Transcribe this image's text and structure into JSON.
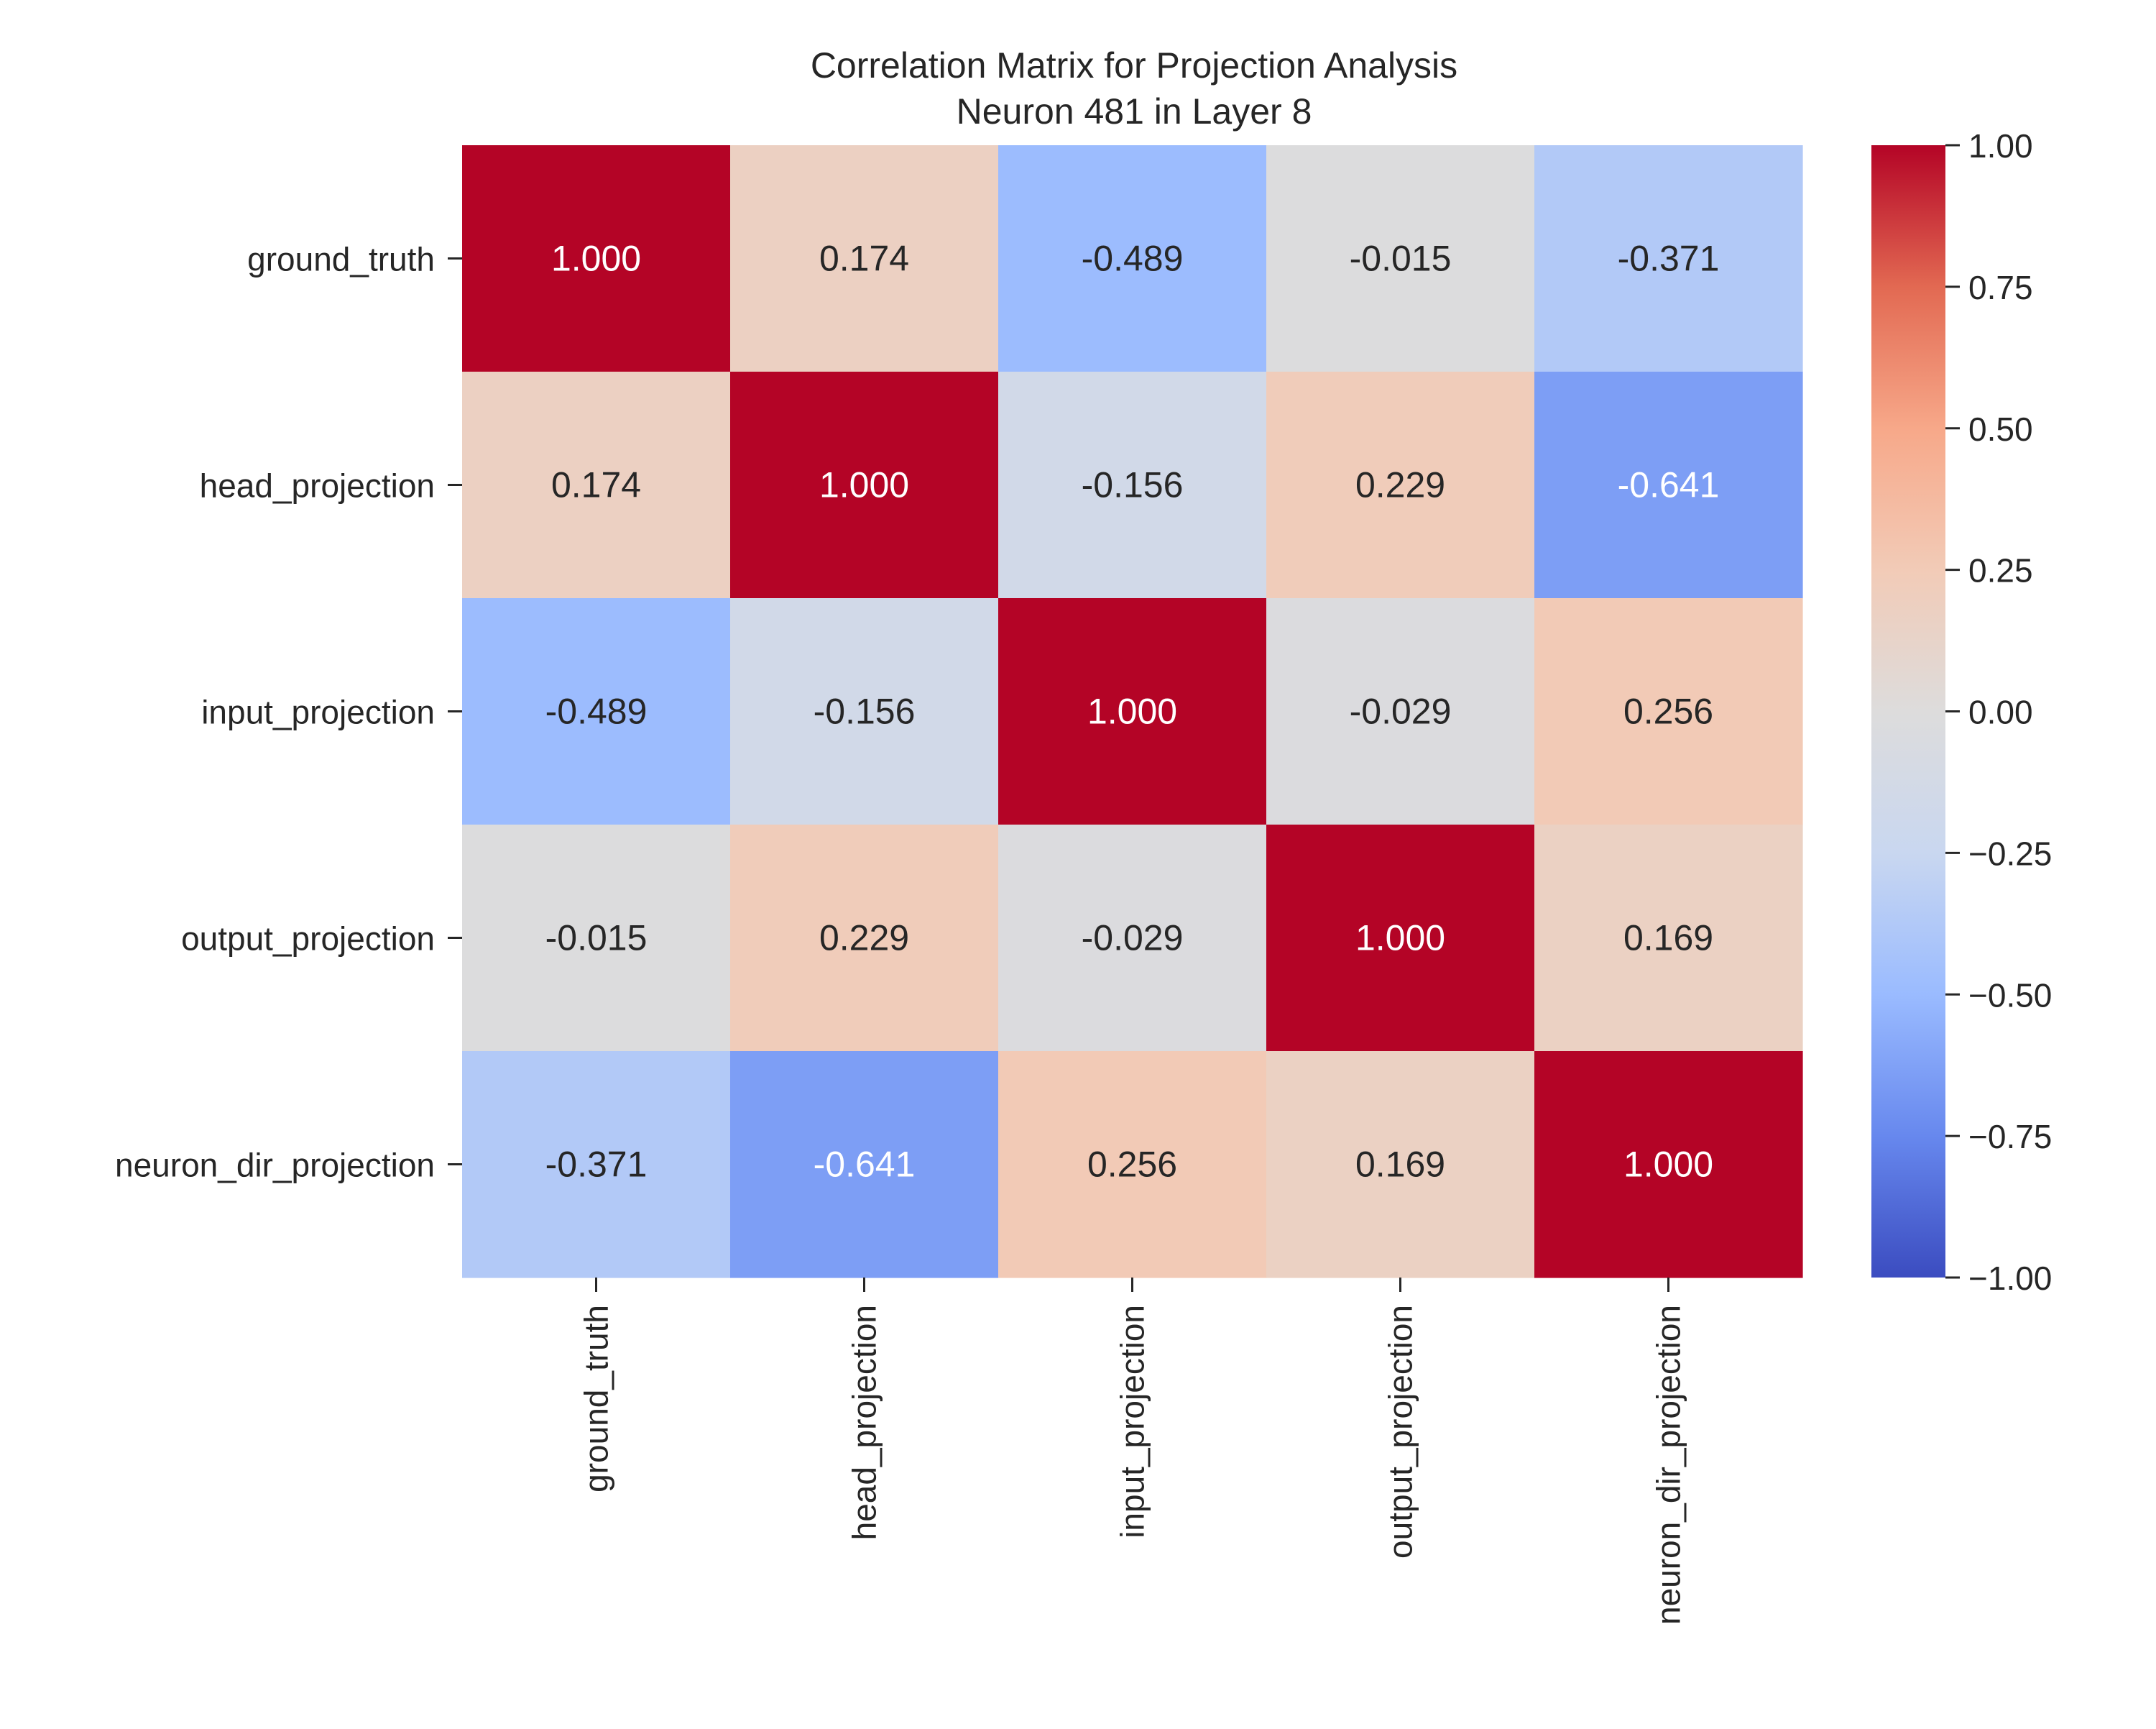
{
  "chart_data": {
    "type": "heatmap",
    "title": "Correlation Matrix for Projection Analysis",
    "subtitle": "Neuron 481 in Layer 8",
    "row_labels": [
      "ground_truth",
      "head_projection",
      "input_projection",
      "output_projection",
      "neuron_dir_projection"
    ],
    "col_labels": [
      "ground_truth",
      "head_projection",
      "input_projection",
      "output_projection",
      "neuron_dir_projection"
    ],
    "values": [
      [
        1.0,
        0.174,
        -0.489,
        -0.015,
        -0.371
      ],
      [
        0.174,
        1.0,
        -0.156,
        0.229,
        -0.641
      ],
      [
        -0.489,
        -0.156,
        1.0,
        -0.029,
        0.256
      ],
      [
        -0.015,
        0.229,
        -0.029,
        1.0,
        0.169
      ],
      [
        -0.371,
        -0.641,
        0.256,
        0.169,
        1.0
      ]
    ],
    "value_format": "0.000",
    "colormap": "coolwarm",
    "color_stops": [
      "#3b4cc0",
      "#6788ee",
      "#9abbff",
      "#c9d7f0",
      "#dddcdc",
      "#f2cbb7",
      "#f7a889",
      "#e26952",
      "#b40426"
    ],
    "colorbar": {
      "range": [
        -1.0,
        1.0
      ],
      "ticks": [
        1.0,
        0.75,
        0.5,
        0.25,
        0.0,
        -0.25,
        -0.5,
        -0.75,
        -1.0
      ],
      "tick_labels": [
        "1.00",
        "0.75",
        "0.50",
        "0.25",
        "0.00",
        "−0.25",
        "−0.50",
        "−0.75",
        "−1.00"
      ]
    }
  }
}
